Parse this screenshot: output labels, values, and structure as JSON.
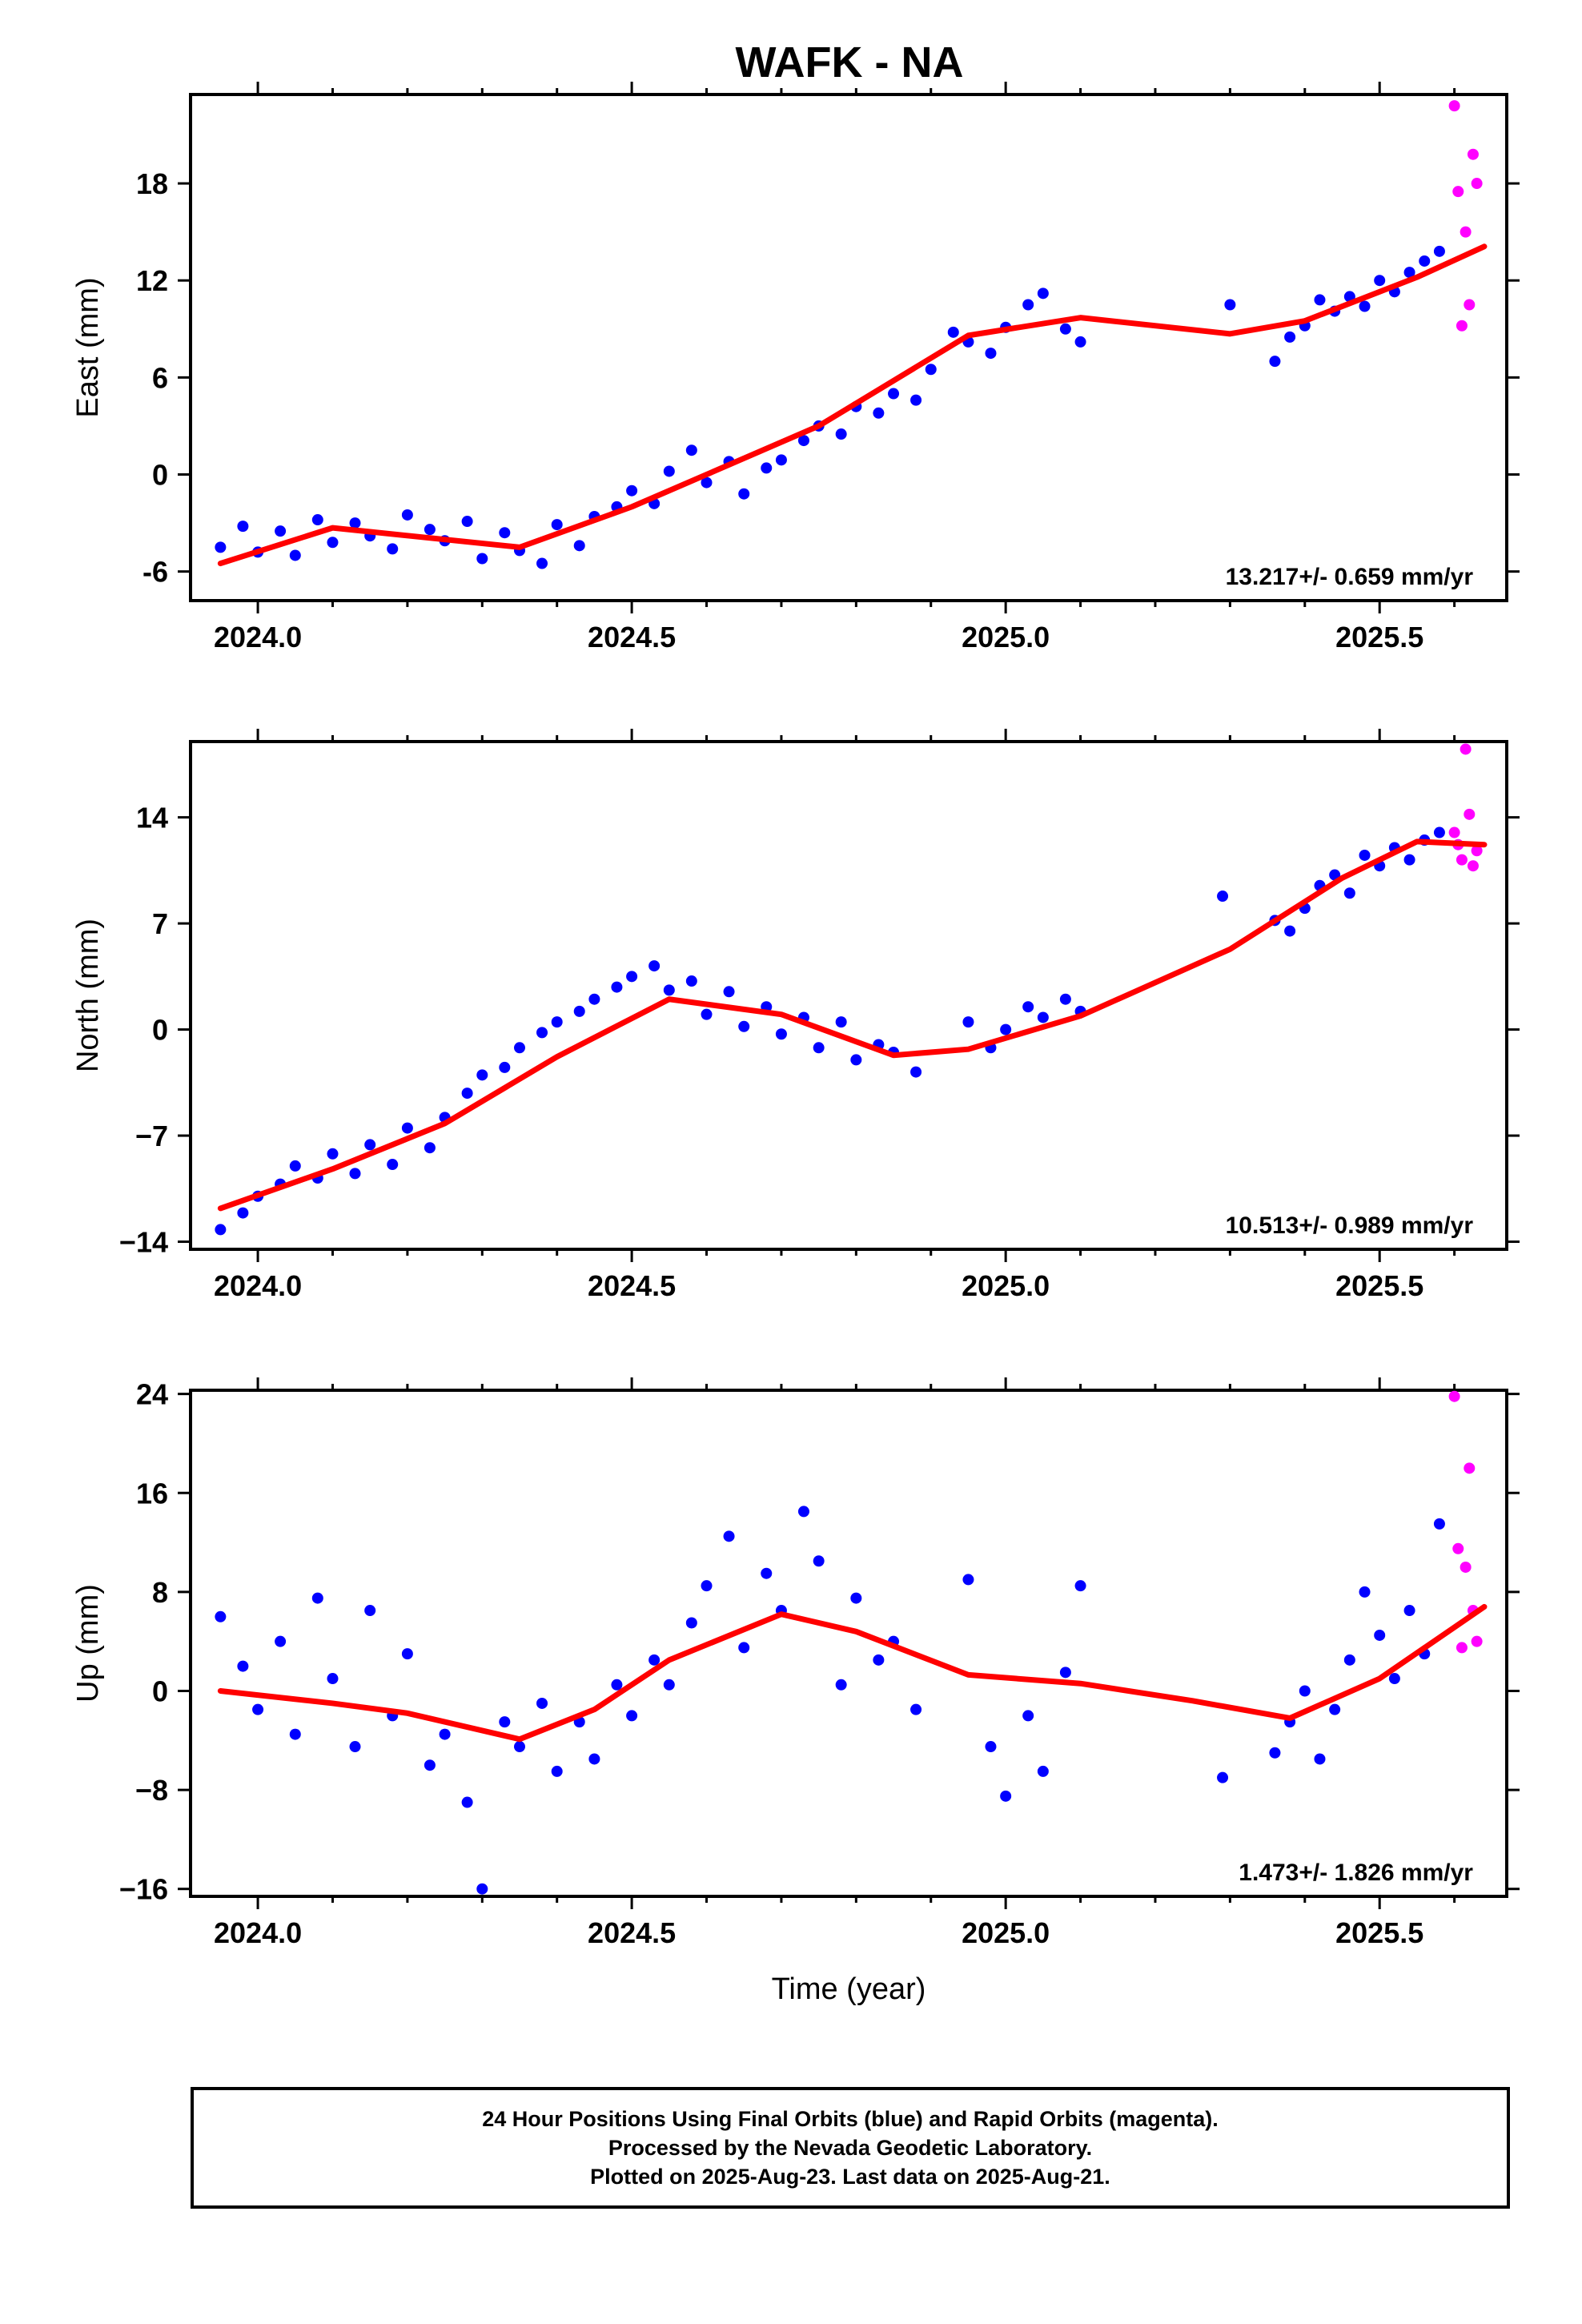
{
  "title": "WAFK - NA",
  "colors": {
    "final": "#0000ff",
    "rapid": "#ff00ff",
    "fit": "#ff0000",
    "frame": "#000000"
  },
  "chart_data": [
    {
      "type": "scatter",
      "title": "WAFK - NA",
      "ylabel": "East (mm)",
      "xlabel": "",
      "xlim": [
        2023.91,
        2025.67
      ],
      "ylim": [
        -7.8,
        23.5
      ],
      "yticks": [
        -6,
        0,
        6,
        12,
        18
      ],
      "xticks": [
        2024.0,
        2024.5,
        2025.0,
        2025.5
      ],
      "xtick_labels": [
        "2024.0",
        "2024.5",
        "2025.0",
        "2025.5"
      ],
      "rate": "13.217+/- 0.659 mm/yr",
      "series": [
        {
          "role": "final",
          "x": [
            2023.95,
            2023.98,
            2024.0,
            2024.03,
            2024.05,
            2024.08,
            2024.1,
            2024.13,
            2024.15,
            2024.18,
            2024.2,
            2024.23,
            2024.25,
            2024.28,
            2024.3,
            2024.33,
            2024.35,
            2024.38,
            2024.4,
            2024.43,
            2024.45,
            2024.48,
            2024.5,
            2024.53,
            2024.55,
            2024.58,
            2024.6,
            2024.63,
            2024.65,
            2024.68,
            2024.7,
            2024.73,
            2024.75,
            2024.78,
            2024.8,
            2024.83,
            2024.85,
            2024.88,
            2024.9,
            2024.93,
            2024.95,
            2024.98,
            2025.0,
            2025.03,
            2025.05,
            2025.08,
            2025.1,
            2025.3,
            2025.36,
            2025.38,
            2025.4,
            2025.42,
            2025.44,
            2025.46,
            2025.48,
            2025.5,
            2025.52,
            2025.54,
            2025.56,
            2025.58
          ],
          "y": [
            -4.5,
            -3.2,
            -4.8,
            -3.5,
            -5.0,
            -2.8,
            -4.2,
            -3.0,
            -3.8,
            -4.6,
            -2.5,
            -3.4,
            -4.1,
            -2.9,
            -5.2,
            -3.6,
            -4.7,
            -5.5,
            -3.1,
            -4.4,
            -2.6,
            -2.0,
            -1.0,
            -1.8,
            0.2,
            1.5,
            -0.5,
            0.8,
            -1.2,
            0.4,
            0.9,
            2.1,
            3.0,
            2.5,
            4.2,
            3.8,
            5.0,
            4.6,
            6.5,
            8.8,
            8.2,
            7.5,
            9.1,
            10.5,
            11.2,
            9.0,
            8.2,
            10.5,
            7.0,
            8.5,
            9.2,
            10.8,
            10.1,
            11.0,
            10.4,
            12.0,
            11.3,
            12.5,
            13.2,
            13.8
          ]
        },
        {
          "role": "rapid",
          "x": [
            2025.6,
            2025.605,
            2025.61,
            2025.615,
            2025.62,
            2025.625,
            2025.63
          ],
          "y": [
            22.8,
            17.5,
            9.2,
            15.0,
            10.5,
            19.8,
            18.0
          ]
        },
        {
          "role": "fit",
          "x": [
            2023.95,
            2024.1,
            2024.35,
            2024.5,
            2024.75,
            2024.95,
            2025.1,
            2025.3,
            2025.4,
            2025.55,
            2025.64
          ],
          "y": [
            -5.5,
            -3.3,
            -4.5,
            -2.0,
            3.0,
            8.6,
            9.7,
            8.7,
            9.5,
            12.2,
            14.1
          ]
        }
      ]
    },
    {
      "type": "scatter",
      "ylabel": "North (mm)",
      "xlabel": "",
      "xlim": [
        2023.91,
        2025.67
      ],
      "ylim": [
        -14.5,
        19.0
      ],
      "yticks": [
        -14,
        -7,
        0,
        7,
        14
      ],
      "yticks_text": [
        "−14",
        "−7",
        "0",
        "7",
        "14"
      ],
      "xticks": [
        2024.0,
        2024.5,
        2025.0,
        2025.5
      ],
      "xtick_labels": [
        "2024.0",
        "2024.5",
        "2025.0",
        "2025.5"
      ],
      "rate": "10.513+/- 0.989 mm/yr",
      "series": [
        {
          "role": "final",
          "x": [
            2023.95,
            2023.98,
            2024.0,
            2024.03,
            2024.05,
            2024.08,
            2024.1,
            2024.13,
            2024.15,
            2024.18,
            2024.2,
            2024.23,
            2024.25,
            2024.28,
            2024.3,
            2024.33,
            2024.35,
            2024.38,
            2024.4,
            2024.43,
            2024.45,
            2024.48,
            2024.5,
            2024.53,
            2024.55,
            2024.58,
            2024.6,
            2024.63,
            2024.65,
            2024.68,
            2024.7,
            2024.73,
            2024.75,
            2024.78,
            2024.8,
            2024.83,
            2024.85,
            2024.88,
            2024.95,
            2024.98,
            2025.0,
            2025.03,
            2025.05,
            2025.08,
            2025.1,
            2025.29,
            2025.36,
            2025.38,
            2025.4,
            2025.42,
            2025.44,
            2025.46,
            2025.48,
            2025.5,
            2025.52,
            2025.54,
            2025.56,
            2025.58
          ],
          "y": [
            -13.2,
            -12.1,
            -11.0,
            -10.2,
            -9.0,
            -9.8,
            -8.2,
            -9.5,
            -7.6,
            -8.9,
            -6.5,
            -7.8,
            -5.8,
            -4.2,
            -3.0,
            -2.5,
            -1.2,
            -0.2,
            0.5,
            1.2,
            2.0,
            2.8,
            3.5,
            4.2,
            2.6,
            3.2,
            1.0,
            2.5,
            0.2,
            1.5,
            -0.3,
            0.8,
            -1.2,
            0.5,
            -2.0,
            -1.0,
            -1.5,
            -2.8,
            0.5,
            -1.2,
            0.0,
            1.5,
            0.8,
            2.0,
            1.2,
            8.8,
            7.2,
            6.5,
            8.0,
            9.5,
            10.2,
            9.0,
            11.5,
            10.8,
            12.0,
            11.2,
            12.5,
            13.0
          ]
        },
        {
          "role": "rapid",
          "x": [
            2025.6,
            2025.605,
            2025.61,
            2025.615,
            2025.62,
            2025.625,
            2025.63
          ],
          "y": [
            13.0,
            12.2,
            11.2,
            18.5,
            14.2,
            10.8,
            11.8
          ]
        },
        {
          "role": "fit",
          "x": [
            2023.95,
            2024.1,
            2024.25,
            2024.4,
            2024.55,
            2024.7,
            2024.85,
            2024.95,
            2025.1,
            2025.3,
            2025.45,
            2025.55,
            2025.64
          ],
          "y": [
            -11.8,
            -9.2,
            -6.2,
            -1.8,
            2.0,
            1.0,
            -1.7,
            -1.3,
            0.9,
            5.3,
            10.0,
            12.4,
            12.2
          ]
        }
      ]
    },
    {
      "type": "scatter",
      "ylabel": "Up (mm)",
      "xlabel": "Time (year)",
      "xlim": [
        2023.91,
        2025.67
      ],
      "ylim": [
        -16.6,
        24.3
      ],
      "yticks": [
        -16,
        -8,
        0,
        8,
        16,
        24
      ],
      "yticks_text": [
        "−16",
        "−8",
        "0",
        "8",
        "16",
        "24"
      ],
      "xticks": [
        2024.0,
        2024.5,
        2025.0,
        2025.5
      ],
      "xtick_labels": [
        "2024.0",
        "2024.5",
        "2025.0",
        "2025.5"
      ],
      "rate": "1.473+/- 1.826 mm/yr",
      "series": [
        {
          "role": "final",
          "x": [
            2023.95,
            2023.98,
            2024.0,
            2024.03,
            2024.05,
            2024.08,
            2024.1,
            2024.13,
            2024.15,
            2024.18,
            2024.2,
            2024.23,
            2024.25,
            2024.28,
            2024.3,
            2024.33,
            2024.35,
            2024.38,
            2024.4,
            2024.43,
            2024.45,
            2024.48,
            2024.5,
            2024.53,
            2024.55,
            2024.58,
            2024.6,
            2024.63,
            2024.65,
            2024.68,
            2024.7,
            2024.73,
            2024.75,
            2024.78,
            2024.8,
            2024.83,
            2024.85,
            2024.88,
            2024.95,
            2024.98,
            2025.0,
            2025.03,
            2025.05,
            2025.08,
            2025.1,
            2025.29,
            2025.36,
            2025.38,
            2025.4,
            2025.42,
            2025.44,
            2025.46,
            2025.48,
            2025.5,
            2025.52,
            2025.54,
            2025.56,
            2025.58
          ],
          "y": [
            6.0,
            2.0,
            -1.5,
            4.0,
            -3.5,
            7.5,
            1.0,
            -4.5,
            6.5,
            -2.0,
            3.0,
            -6.0,
            -3.5,
            -9.0,
            -16.0,
            -2.5,
            -4.5,
            -1.0,
            -6.5,
            -2.5,
            -5.5,
            0.5,
            -2.0,
            2.5,
            0.5,
            5.5,
            8.5,
            12.5,
            3.5,
            9.5,
            6.5,
            14.5,
            10.5,
            0.5,
            7.5,
            2.5,
            4.0,
            -1.5,
            9.0,
            -4.5,
            -8.5,
            -2.0,
            -6.5,
            1.5,
            8.5,
            -7.0,
            -5.0,
            -2.5,
            0.0,
            -5.5,
            -1.5,
            2.5,
            8.0,
            4.5,
            1.0,
            6.5,
            3.0,
            13.5
          ]
        },
        {
          "role": "rapid",
          "x": [
            2025.6,
            2025.605,
            2025.61,
            2025.615,
            2025.62,
            2025.625,
            2025.63
          ],
          "y": [
            23.8,
            11.5,
            3.5,
            10.0,
            18.0,
            6.5,
            4.0
          ]
        },
        {
          "role": "fit",
          "x": [
            2023.95,
            2024.1,
            2024.2,
            2024.35,
            2024.45,
            2024.55,
            2024.7,
            2024.8,
            2024.95,
            2025.1,
            2025.25,
            2025.38,
            2025.5,
            2025.64
          ],
          "y": [
            0.0,
            -1.0,
            -1.8,
            -3.9,
            -1.5,
            2.5,
            6.2,
            4.8,
            1.3,
            0.6,
            -0.8,
            -2.2,
            1.0,
            6.8
          ]
        }
      ]
    }
  ],
  "footer": {
    "line1": "24 Hour Positions Using Final Orbits (blue) and Rapid Orbits (magenta).",
    "line2": "Processed by the Nevada Geodetic Laboratory.",
    "line3": "Plotted on 2025-Aug-23. Last data on 2025-Aug-21."
  }
}
